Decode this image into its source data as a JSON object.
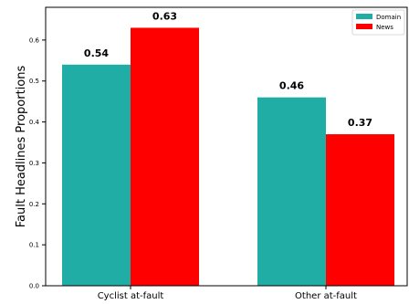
{
  "chart_data": {
    "type": "bar",
    "categories": [
      "Cyclist at-fault",
      "Other at-fault"
    ],
    "series": [
      {
        "name": "Domain",
        "values": [
          0.54,
          0.46
        ],
        "color": "#20ada6"
      },
      {
        "name": "News",
        "values": [
          0.63,
          0.37
        ],
        "color": "#ff0000"
      }
    ],
    "value_labels": [
      [
        "0.54",
        "0.46"
      ],
      [
        "0.63",
        "0.37"
      ]
    ],
    "ylabel": "Fault Headlines Proportions",
    "xlabel": "",
    "title": "",
    "ylim": [
      0,
      0.68
    ],
    "yticks": [
      0.0,
      0.1,
      0.2,
      0.3,
      0.4,
      0.5,
      0.6
    ],
    "ytick_labels": [
      "0.0",
      "0.1",
      "0.2",
      "0.3",
      "0.4",
      "0.5",
      "0.6"
    ],
    "legend_position": "top-right",
    "grid": false
  }
}
